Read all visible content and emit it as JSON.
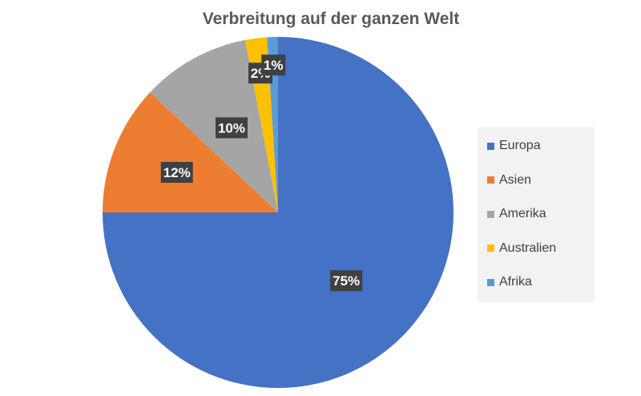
{
  "chart_data": {
    "type": "pie",
    "title": "Verbreitung auf der ganzen Welt",
    "legend_position": "right",
    "slices": [
      {
        "name": "Europa",
        "value": 75,
        "label": "75%",
        "color": "#4472c4"
      },
      {
        "name": "Asien",
        "value": 12,
        "label": "12%",
        "color": "#ed7d31"
      },
      {
        "name": "Amerika",
        "value": 10,
        "label": "10%",
        "color": "#a5a5a5"
      },
      {
        "name": "Australien",
        "value": 2,
        "label": "2%",
        "color": "#ffc000"
      },
      {
        "name": "Afrika",
        "value": 1,
        "label": "1%",
        "color": "#5b9bd5"
      }
    ]
  }
}
